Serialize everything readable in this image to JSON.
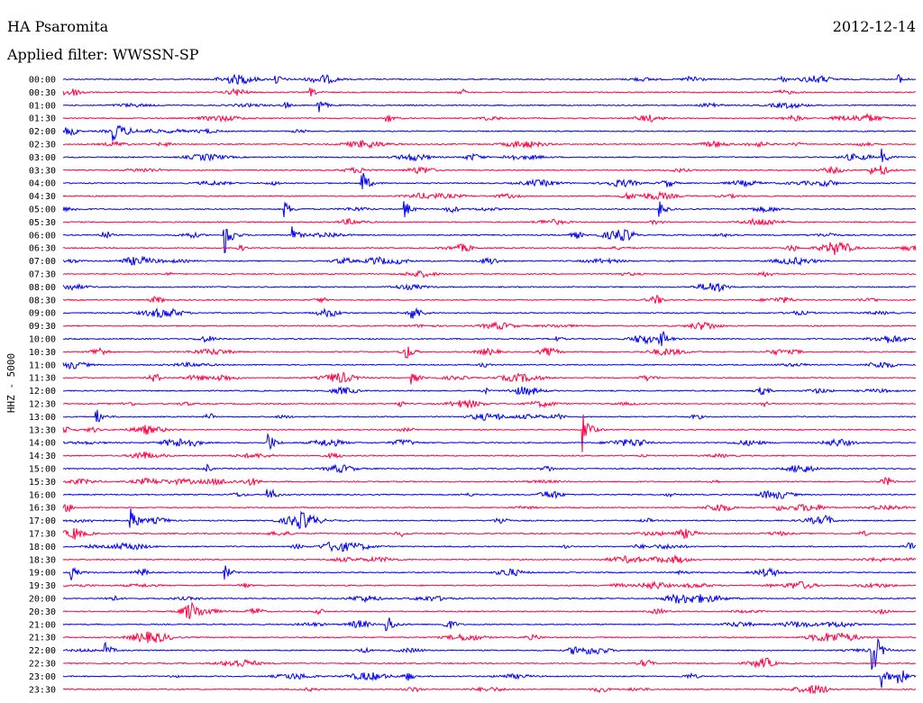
{
  "header": {
    "station": "HA Psaromita",
    "date": "2012-12-14",
    "filter": "Applied filter: WWSSN-SP"
  },
  "colors": {
    "even_hour_trace": "#0000ee",
    "odd_half_trace": "#ff0044",
    "background": "#ffffff"
  },
  "chart_data": {
    "type": "line",
    "title": "HA Psaromita",
    "subtitle": "Applied filter: WWSSN-SP",
    "ylabel": "HHZ - 5000",
    "xlabel": "",
    "grid": false,
    "rows": [
      "00:00",
      "00:30",
      "01:00",
      "01:30",
      "02:00",
      "02:30",
      "03:00",
      "03:30",
      "04:00",
      "04:30",
      "05:00",
      "05:30",
      "06:00",
      "06:30",
      "07:00",
      "07:30",
      "08:00",
      "08:30",
      "09:00",
      "09:30",
      "10:00",
      "10:30",
      "11:00",
      "11:30",
      "12:00",
      "12:30",
      "13:00",
      "13:30",
      "14:00",
      "14:30",
      "15:00",
      "15:30",
      "16:00",
      "16:30",
      "17:00",
      "17:30",
      "18:00",
      "18:30",
      "19:00",
      "19:30",
      "20:00",
      "20:30",
      "21:00",
      "21:30",
      "22:00",
      "22:30",
      "23:00",
      "23:30"
    ],
    "series": [
      {
        "name": "blue",
        "color": "#0000ee",
        "rows": [
          0,
          2,
          4,
          6,
          8,
          10,
          12,
          14,
          16,
          18,
          20,
          22,
          24,
          26,
          28,
          30,
          32,
          34,
          36,
          38,
          40,
          42,
          44,
          46
        ]
      },
      {
        "name": "red",
        "color": "#ff0044",
        "rows": [
          1,
          3,
          5,
          7,
          9,
          11,
          13,
          15,
          17,
          19,
          21,
          23,
          25,
          27,
          29,
          31,
          33,
          35,
          37,
          39,
          41,
          43,
          45,
          47
        ]
      }
    ],
    "window_minutes": 30,
    "events": [
      {
        "row": 0,
        "t": 0.25,
        "amp": 6
      },
      {
        "row": 0,
        "t": 0.98,
        "amp": 5
      },
      {
        "row": 1,
        "t": 0.29,
        "amp": 5
      },
      {
        "row": 2,
        "t": 0.3,
        "amp": 9
      },
      {
        "row": 3,
        "t": 0.38,
        "amp": 6
      },
      {
        "row": 4,
        "t": 0.06,
        "amp": 8
      },
      {
        "row": 6,
        "t": 0.96,
        "amp": 9
      },
      {
        "row": 7,
        "t": 0.96,
        "amp": 7
      },
      {
        "row": 8,
        "t": 0.35,
        "amp": 17
      },
      {
        "row": 10,
        "t": 0.26,
        "amp": 10
      },
      {
        "row": 10,
        "t": 0.4,
        "amp": 12
      },
      {
        "row": 10,
        "t": 0.7,
        "amp": 8
      },
      {
        "row": 12,
        "t": 0.19,
        "amp": 24
      },
      {
        "row": 12,
        "t": 0.27,
        "amp": 9
      },
      {
        "row": 12,
        "t": 0.65,
        "amp": 8
      },
      {
        "row": 18,
        "t": 0.41,
        "amp": 9
      },
      {
        "row": 20,
        "t": 0.7,
        "amp": 16
      },
      {
        "row": 23,
        "t": 0.41,
        "amp": 7
      },
      {
        "row": 26,
        "t": 0.04,
        "amp": 8
      },
      {
        "row": 27,
        "t": 0.61,
        "amp": 26
      },
      {
        "row": 28,
        "t": 0.24,
        "amp": 14
      },
      {
        "row": 32,
        "t": 0.24,
        "amp": 12
      },
      {
        "row": 34,
        "t": 0.08,
        "amp": 17
      },
      {
        "row": 38,
        "t": 0.01,
        "amp": 8
      },
      {
        "row": 38,
        "t": 0.19,
        "amp": 8
      },
      {
        "row": 42,
        "t": 0.38,
        "amp": 13
      },
      {
        "row": 44,
        "t": 0.05,
        "amp": 8
      },
      {
        "row": 44,
        "t": 0.95,
        "amp": 30
      },
      {
        "row": 46,
        "t": 0.96,
        "amp": 16
      },
      {
        "row": 46,
        "t": 0.98,
        "amp": 14
      }
    ]
  }
}
